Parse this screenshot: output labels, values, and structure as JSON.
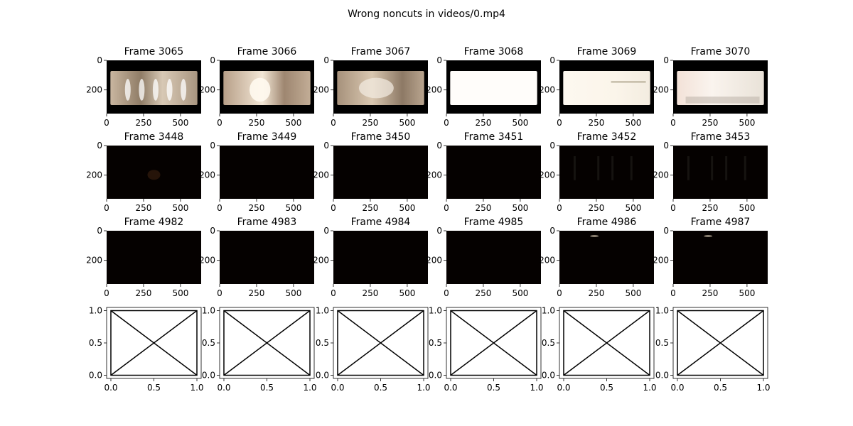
{
  "figure": {
    "title": "Wrong noncuts in videos/0.mp4"
  },
  "chart_data": [
    {
      "type": "image-grid",
      "rows": [
        {
          "kind": "frames",
          "frames": [
            {
              "title": "Frame 3065",
              "content": "letterboxed-scene"
            },
            {
              "title": "Frame 3066",
              "content": "letterboxed-scene-bright-flare"
            },
            {
              "title": "Frame 3067",
              "content": "letterboxed-scene-motion-blur"
            },
            {
              "title": "Frame 3068",
              "content": "letterboxed-white-flash"
            },
            {
              "title": "Frame 3069",
              "content": "letterboxed-near-white"
            },
            {
              "title": "Frame 3070",
              "content": "letterboxed-near-white-pinkish"
            }
          ],
          "x_ticks": [
            "0",
            "250",
            "500"
          ],
          "y_ticks": [
            "0",
            "200"
          ]
        },
        {
          "kind": "frames",
          "frames": [
            {
              "title": "Frame 3448",
              "content": "near-black-faint-glow"
            },
            {
              "title": "Frame 3449",
              "content": "near-black"
            },
            {
              "title": "Frame 3450",
              "content": "near-black"
            },
            {
              "title": "Frame 3451",
              "content": "near-black"
            },
            {
              "title": "Frame 3452",
              "content": "near-black-faint-vertical-shapes"
            },
            {
              "title": "Frame 3453",
              "content": "near-black-faint-vertical-shapes"
            }
          ],
          "x_ticks": [
            "0",
            "250",
            "500"
          ],
          "y_ticks": [
            "0",
            "200"
          ]
        },
        {
          "kind": "frames",
          "frames": [
            {
              "title": "Frame 4982",
              "content": "near-black"
            },
            {
              "title": "Frame 4983",
              "content": "near-black"
            },
            {
              "title": "Frame 4984",
              "content": "near-black"
            },
            {
              "title": "Frame 4985",
              "content": "near-black"
            },
            {
              "title": "Frame 4986",
              "content": "near-black-small-highlight"
            },
            {
              "title": "Frame 4987",
              "content": "near-black-small-highlight"
            }
          ],
          "x_ticks": [
            "0",
            "250",
            "500"
          ],
          "y_ticks": [
            "0",
            "200"
          ]
        },
        {
          "kind": "empty",
          "count": 6,
          "x_ticks": [
            "0.0",
            "0.5",
            "1.0"
          ],
          "y_ticks": [
            "0.0",
            "0.5",
            "1.0"
          ]
        }
      ]
    }
  ]
}
